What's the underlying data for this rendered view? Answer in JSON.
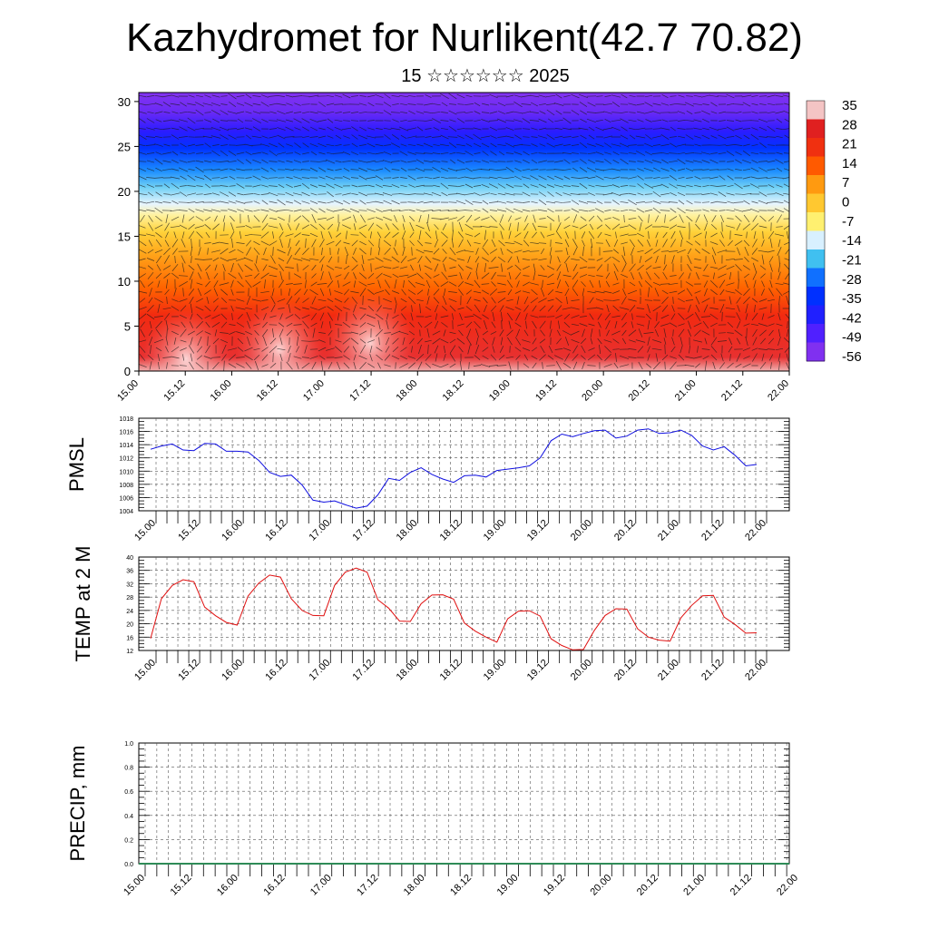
{
  "header": {
    "title": "Kazhydromet for Nurlikent(42.7 70.82)",
    "subtitle": "15 ☆☆☆☆☆☆ 2025"
  },
  "chart_data": [
    {
      "type": "heatmap",
      "title": "",
      "xlabel": "",
      "ylabel": "",
      "x_ticks": [
        "15.00",
        "15.12",
        "16.00",
        "16.12",
        "17.00",
        "17.12",
        "18.00",
        "18.12",
        "19.00",
        "19.12",
        "20.00",
        "20.12",
        "21.00",
        "21.12",
        "22.00"
      ],
      "y_ticks": [
        0,
        5,
        10,
        15,
        20,
        25,
        30
      ],
      "ylim": [
        0,
        31
      ],
      "colorbar": {
        "labels": [
          "35",
          "28",
          "21",
          "14",
          "7",
          "0",
          "-7",
          "-14",
          "-21",
          "-28",
          "-35",
          "-42",
          "-49",
          "-56"
        ],
        "colors": [
          "#f4c4c4",
          "#e02020",
          "#f03010",
          "#ff5a00",
          "#ff9a10",
          "#ffc830",
          "#fff070",
          "#d8f0ff",
          "#40c0f0",
          "#1070ff",
          "#0030ff",
          "#2020ff",
          "#5020ff",
          "#8030f0"
        ]
      },
      "overlay": "wind vectors"
    },
    {
      "type": "line",
      "ylabel": "PMSL",
      "ylim": [
        1004,
        1018
      ],
      "y_ticks": [
        "1004",
        "1006",
        "1008",
        "1010",
        "1012",
        "1014",
        "1016",
        "1018"
      ],
      "x_ticks": [
        "15.00",
        "15.12",
        "16.00",
        "16.12",
        "17.00",
        "17.12",
        "18.00",
        "18.12",
        "19.00",
        "19.12",
        "20.00",
        "20.12",
        "21.00",
        "21.12",
        "22.00"
      ],
      "color": "#1010e0",
      "values": [
        1013.3,
        1013.8,
        1014.1,
        1013.2,
        1013.1,
        1014.2,
        1014.1,
        1013.0,
        1013.0,
        1012.9,
        1011.6,
        1009.8,
        1009.2,
        1009.4,
        1007.9,
        1005.6,
        1005.3,
        1005.5,
        1004.9,
        1004.4,
        1004.7,
        1006.4,
        1008.9,
        1008.6,
        1009.8,
        1010.5,
        1009.5,
        1008.8,
        1008.3,
        1009.3,
        1009.4,
        1009.1,
        1010.1,
        1010.3,
        1010.5,
        1010.8,
        1012.0,
        1014.6,
        1015.6,
        1015.2,
        1015.7,
        1016.1,
        1016.2,
        1015.0,
        1015.3,
        1016.2,
        1016.4,
        1015.7,
        1015.8,
        1016.2,
        1015.4,
        1013.8,
        1013.2,
        1013.7,
        1012.4,
        1010.8,
        1011.0
      ]
    },
    {
      "type": "line",
      "ylabel": "TEMP at 2 M",
      "ylim": [
        12,
        40
      ],
      "y_ticks": [
        "12",
        "16",
        "20",
        "24",
        "28",
        "32",
        "36",
        "40"
      ],
      "x_ticks": [
        "15.00",
        "15.12",
        "16.00",
        "16.12",
        "17.00",
        "17.12",
        "18.00",
        "18.12",
        "19.00",
        "19.12",
        "20.00",
        "20.12",
        "21.00",
        "21.12",
        "22.00"
      ],
      "color": "#e01010",
      "values": [
        15.6,
        27.5,
        31.5,
        33.2,
        32.6,
        25.0,
        22.4,
        20.4,
        19.6,
        28.3,
        32.2,
        34.6,
        34.0,
        27.5,
        24.0,
        22.5,
        22.4,
        31.5,
        35.5,
        36.7,
        35.5,
        27.2,
        24.7,
        20.8,
        20.7,
        26.0,
        28.6,
        28.7,
        27.4,
        20.2,
        17.8,
        16.0,
        14.5,
        21.5,
        23.8,
        23.9,
        22.3,
        15.5,
        13.5,
        12.2,
        12.3,
        18.0,
        22.5,
        24.5,
        24.4,
        18.5,
        16.0,
        15.1,
        14.8,
        21.8,
        25.5,
        28.4,
        28.5,
        22.0,
        19.8,
        17.2,
        17.3
      ]
    },
    {
      "type": "line",
      "ylabel": "PRECIP, mm",
      "ylim": [
        0,
        1
      ],
      "y_ticks": [
        "0.0",
        "0.2",
        "0.4",
        "0.6",
        "0.8",
        "1.0"
      ],
      "x_ticks": [
        "15.00",
        "15.12",
        "16.00",
        "16.12",
        "17.00",
        "17.12",
        "18.00",
        "18.12",
        "19.00",
        "19.12",
        "20.00",
        "20.12",
        "21.00",
        "21.12",
        "22.00"
      ],
      "color": "#2e8b57",
      "values": [
        0,
        0
      ]
    }
  ]
}
